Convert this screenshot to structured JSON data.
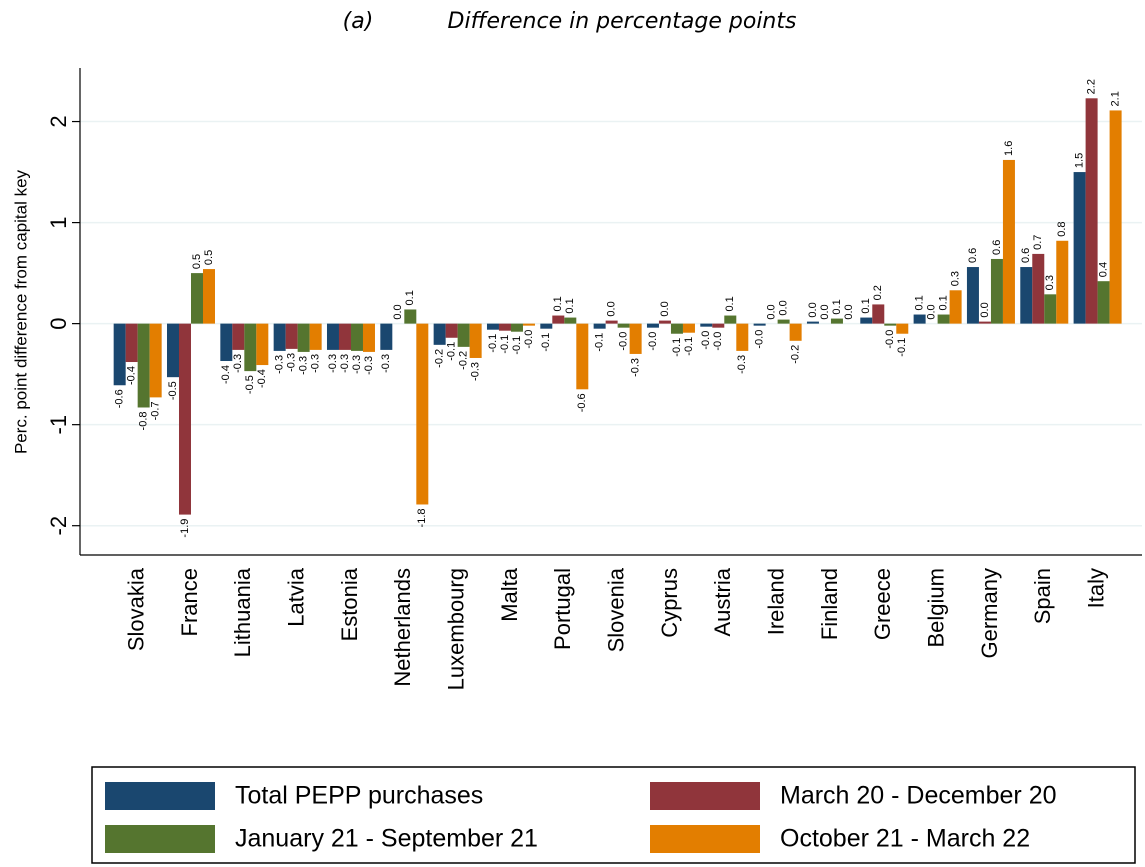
{
  "chart_data": {
    "type": "bar",
    "panel_label": "(a)",
    "title": "Difference in percentage points",
    "ylabel": "Perc. point difference from capital key",
    "categories": [
      "Slovakia",
      "France",
      "Lithuania",
      "Latvia",
      "Estonia",
      "Netherlands",
      "Luxembourg",
      "Malta",
      "Portugal",
      "Slovenia",
      "Cyprus",
      "Austria",
      "Ireland",
      "Finland",
      "Greece",
      "Belgium",
      "Germany",
      "Spain",
      "Italy"
    ],
    "series": [
      {
        "name": "Total PEPP purchases",
        "color": "#1a476f",
        "values": [
          -0.61,
          -0.53,
          -0.37,
          -0.27,
          -0.26,
          -0.26,
          -0.21,
          -0.06,
          -0.05,
          -0.05,
          -0.04,
          -0.03,
          -0.02,
          0.02,
          0.06,
          0.09,
          0.56,
          0.56,
          1.5
        ],
        "value_labels": [
          "-0.6",
          "-0.5",
          "-0.4",
          "-0.3",
          "-0.3",
          "-0.3",
          "-0.2",
          "-0.1",
          "-0.1",
          "-0.1",
          "-0.0",
          "-0.0",
          "-0.0",
          "0.0",
          "0.1",
          "0.1",
          "0.6",
          "0.6",
          "1.5"
        ]
      },
      {
        "name": "March 20 - December 20",
        "color": "#90353b",
        "values": [
          -0.38,
          -1.89,
          -0.26,
          -0.25,
          -0.26,
          0.0,
          -0.14,
          -0.07,
          0.08,
          0.03,
          0.03,
          -0.04,
          0.0,
          0.0,
          0.19,
          0.0,
          0.02,
          0.69,
          2.23
        ],
        "value_labels": [
          "-0.4",
          "-1.9",
          "-0.3",
          "-0.3",
          "-0.3",
          "0.0",
          "-0.1",
          "-0.1",
          "0.1",
          "0.0",
          "0.0",
          "-0.0",
          "0.0",
          "0.0",
          "0.2",
          "0.0",
          "0.0",
          "0.7",
          "2.2"
        ]
      },
      {
        "name": "January 21 - September 21",
        "color": "#55752f",
        "values": [
          -0.83,
          0.5,
          -0.47,
          -0.28,
          -0.27,
          0.14,
          -0.23,
          -0.08,
          0.06,
          -0.04,
          -0.1,
          0.08,
          0.04,
          0.05,
          -0.02,
          0.09,
          0.64,
          0.29,
          0.42
        ],
        "value_labels": [
          "-0.8",
          "0.5",
          "-0.5",
          "-0.3",
          "-0.3",
          "0.1",
          "-0.2",
          "-0.1",
          "0.1",
          "-0.0",
          "-0.1",
          "0.1",
          "0.0",
          "0.1",
          "-0.0",
          "0.1",
          "0.6",
          "0.3",
          "0.4"
        ]
      },
      {
        "name": "October 21 - March 22",
        "color": "#e37e00",
        "values": [
          -0.73,
          0.54,
          -0.41,
          -0.26,
          -0.28,
          -1.79,
          -0.34,
          -0.02,
          -0.65,
          -0.3,
          -0.09,
          -0.27,
          -0.17,
          0.0,
          -0.1,
          0.33,
          1.62,
          0.82,
          2.11
        ],
        "value_labels": [
          "-0.7",
          "0.5",
          "-0.4",
          "-0.3",
          "-0.3",
          "-1.8",
          "-0.3",
          "-0.0",
          "-0.6",
          "-0.3",
          "-0.1",
          "-0.3",
          "-0.2",
          "0.0",
          "-0.1",
          "0.3",
          "1.6",
          "0.8",
          "2.1"
        ]
      }
    ],
    "ylim": [
      -2.29,
      2.53
    ],
    "yticks": [
      -2,
      -1,
      0,
      1,
      2
    ],
    "grid": true
  }
}
